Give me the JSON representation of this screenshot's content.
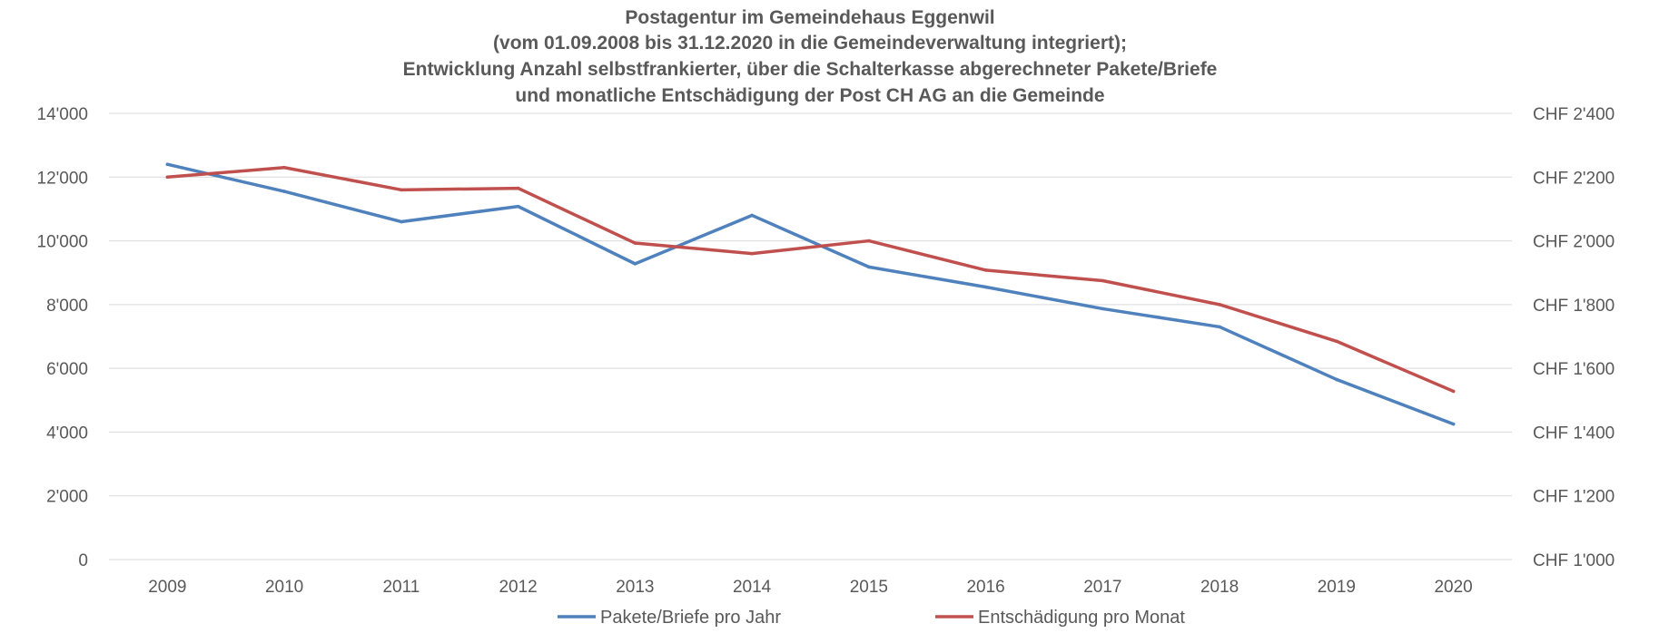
{
  "chart_data": {
    "type": "line",
    "title_lines": [
      "Postagentur im Gemeindehaus Eggenwil",
      "(vom 01.09.2008 bis 31.12.2020 in die Gemeindeverwaltung integriert);",
      "Entwicklung Anzahl selbstfrankierter, über die Schalterkasse abgerechneter Pakete/Briefe",
      "und monatliche Entschädigung der Post CH AG an die Gemeinde"
    ],
    "categories": [
      "2009",
      "2010",
      "2011",
      "2012",
      "2013",
      "2014",
      "2015",
      "2016",
      "2017",
      "2018",
      "2019",
      "2020"
    ],
    "y_left": {
      "ylim": [
        0,
        14000
      ],
      "ticks": [
        0,
        2000,
        4000,
        6000,
        8000,
        10000,
        12000,
        14000
      ],
      "tick_labels": [
        "0",
        "2'000",
        "4'000",
        "6'000",
        "8'000",
        "10'000",
        "12'000",
        "14'000"
      ]
    },
    "y_right": {
      "ylim": [
        1000,
        2400
      ],
      "ticks": [
        1000,
        1200,
        1400,
        1600,
        1800,
        2000,
        2200,
        2400
      ],
      "tick_labels": [
        "CHF 1'000",
        "CHF 1'200",
        "CHF 1'400",
        "CHF 1'600",
        "CHF 1'800",
        "CHF 2'000",
        "CHF 2'200",
        "CHF 2'400"
      ]
    },
    "grid": true,
    "legend_position": "bottom",
    "series": [
      {
        "name": "Pakete/Briefe pro Jahr",
        "axis": "left",
        "color": "#4f81bd",
        "values": [
          12400,
          11550,
          10600,
          11080,
          9280,
          10800,
          9180,
          8550,
          7870,
          7300,
          5650,
          4250
        ]
      },
      {
        "name": "Entschädigung pro Monat",
        "axis": "right",
        "color": "#c0504d",
        "values": [
          2200,
          2230,
          2160,
          2165,
          1993,
          1960,
          2000,
          1908,
          1875,
          1800,
          1685,
          1528
        ]
      }
    ]
  }
}
